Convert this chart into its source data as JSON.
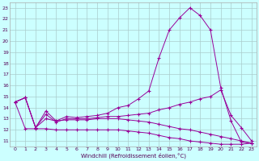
{
  "xlabel": "Windchill (Refroidissement éolien,°C)",
  "bg_color": "#ccffff",
  "grid_color": "#aacccc",
  "line_color": "#990099",
  "line1_x": [
    0,
    1,
    2,
    3,
    4,
    5,
    6,
    7,
    8,
    9,
    10,
    11,
    12,
    13,
    14,
    15,
    16,
    17,
    18,
    19,
    20,
    21,
    22,
    23
  ],
  "line1_y": [
    14.5,
    14.9,
    12.2,
    13.7,
    12.8,
    13.2,
    13.1,
    13.2,
    13.3,
    13.5,
    14.0,
    14.2,
    14.8,
    15.5,
    18.5,
    21.0,
    22.1,
    23.0,
    22.3,
    21.0,
    15.8,
    12.8,
    10.9,
    10.8
  ],
  "line2_x": [
    0,
    1,
    2,
    3,
    4,
    5,
    6,
    7,
    8,
    9,
    10,
    11,
    12,
    13,
    14,
    15,
    16,
    17,
    18,
    19,
    20,
    21,
    22,
    23
  ],
  "line2_y": [
    14.5,
    14.9,
    12.2,
    13.4,
    12.7,
    13.0,
    13.0,
    13.0,
    13.1,
    13.2,
    13.2,
    13.3,
    13.4,
    13.5,
    13.8,
    14.0,
    14.3,
    14.5,
    14.8,
    15.0,
    15.6,
    13.3,
    12.2,
    11.0
  ],
  "line3_x": [
    0,
    1,
    2,
    3,
    4,
    5,
    6,
    7,
    8,
    9,
    10,
    11,
    12,
    13,
    14,
    15,
    16,
    17,
    18,
    19,
    20,
    21,
    22,
    23
  ],
  "line3_y": [
    14.5,
    14.9,
    12.2,
    13.0,
    12.8,
    12.9,
    12.9,
    12.9,
    13.0,
    13.0,
    13.0,
    12.9,
    12.8,
    12.7,
    12.5,
    12.3,
    12.1,
    12.0,
    11.8,
    11.6,
    11.4,
    11.2,
    11.0,
    10.8
  ],
  "line4_x": [
    0,
    1,
    2,
    3,
    4,
    5,
    6,
    7,
    8,
    9,
    10,
    11,
    12,
    13,
    14,
    15,
    16,
    17,
    18,
    19,
    20,
    21,
    22,
    23
  ],
  "line4_y": [
    14.5,
    12.1,
    12.1,
    12.1,
    12.0,
    12.0,
    12.0,
    12.0,
    12.0,
    12.0,
    12.0,
    11.9,
    11.8,
    11.7,
    11.5,
    11.3,
    11.2,
    11.0,
    10.9,
    10.8,
    10.7,
    10.7,
    10.7,
    10.8
  ],
  "xlim": [
    -0.5,
    23.5
  ],
  "ylim": [
    10.5,
    23.5
  ],
  "yticks": [
    11,
    12,
    13,
    14,
    15,
    16,
    17,
    18,
    19,
    20,
    21,
    22,
    23
  ],
  "xticks": [
    0,
    1,
    2,
    3,
    4,
    5,
    6,
    7,
    8,
    9,
    10,
    11,
    12,
    13,
    14,
    15,
    16,
    17,
    18,
    19,
    20,
    21,
    22,
    23
  ],
  "tick_fontsize": 4.5,
  "xlabel_fontsize": 5.0
}
